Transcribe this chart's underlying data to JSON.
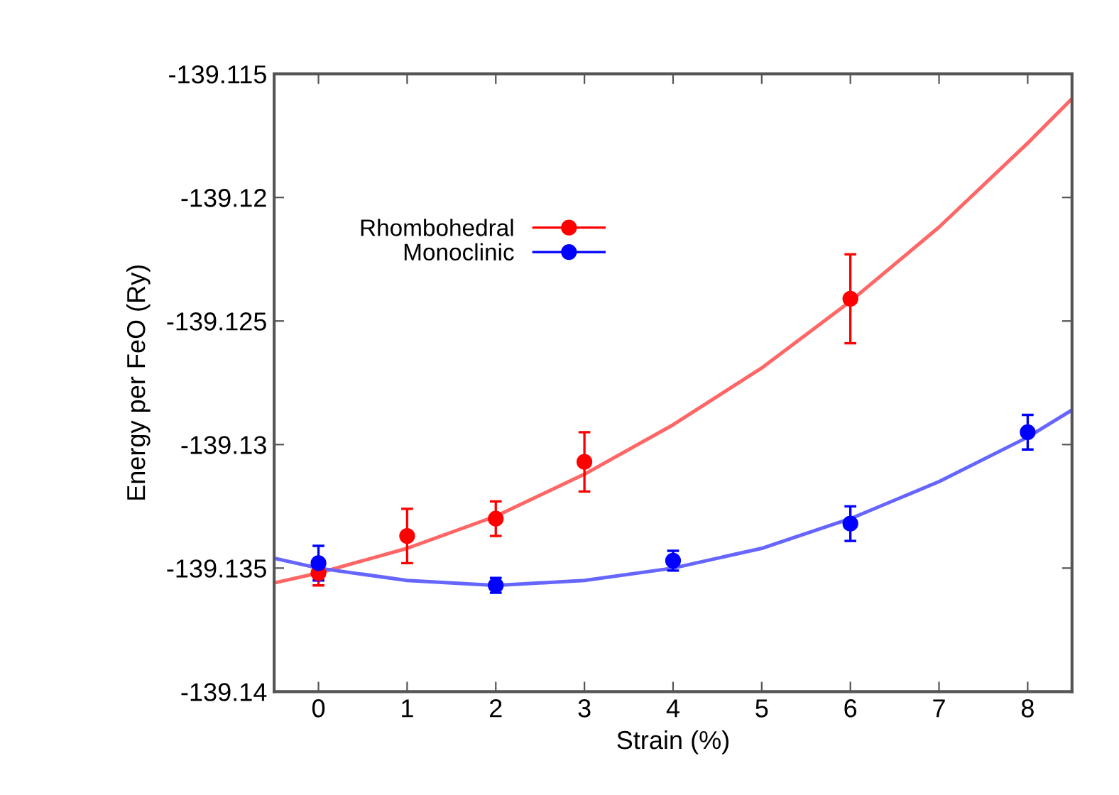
{
  "chart_data": {
    "type": "scatter",
    "xlabel": "Strain (%)",
    "ylabel": "Energy per FeO (Ry)",
    "xlim": [
      -0.5,
      8.5
    ],
    "xticks": [
      0,
      1,
      2,
      3,
      4,
      5,
      6,
      7,
      8
    ],
    "ylim": [
      -139.14,
      -139.115
    ],
    "yticks": [
      -139.14,
      -139.135,
      -139.13,
      -139.125,
      -139.12,
      -139.115
    ],
    "grid": false,
    "legend": "top left",
    "marker": "circle",
    "series": [
      {
        "name": "Rhombohedral",
        "color": "#ff0000",
        "x": [
          0,
          1,
          2,
          3,
          6
        ],
        "values": [
          -139.1352,
          -139.1337,
          -139.133,
          -139.1307,
          -139.1241
        ],
        "errors": [
          0.0005,
          0.0011,
          0.0007,
          0.0012,
          0.0018
        ]
      },
      {
        "name": "Monoclinic",
        "color": "#0000ff",
        "x": [
          0,
          2,
          4,
          6,
          8
        ],
        "values": [
          -139.1348,
          -139.1357,
          -139.1347,
          -139.1332,
          -139.1295
        ],
        "errors": [
          0.0007,
          0.0003,
          0.0004,
          0.0007,
          0.0007
        ]
      },
      {
        "type": "line",
        "marker": "none",
        "color": "#ff6666",
        "x": [
          -0.5,
          0,
          1,
          2,
          3,
          4,
          5,
          6,
          7,
          8,
          8.5
        ],
        "values": [
          -139.1356,
          -139.1352,
          -139.1342,
          -139.1329,
          -139.1312,
          -139.1292,
          -139.1269,
          -139.1242,
          -139.1212,
          -139.1178,
          -139.116
        ]
      },
      {
        "type": "line",
        "marker": "none",
        "color": "#6666ff",
        "x": [
          -0.5,
          0,
          1,
          2,
          3,
          4,
          5,
          6,
          7,
          8,
          8.5
        ],
        "values": [
          -139.1346,
          -139.135,
          -139.1355,
          -139.1357,
          -139.1355,
          -139.135,
          -139.1342,
          -139.133,
          -139.1315,
          -139.1297,
          -139.1286
        ]
      }
    ]
  }
}
